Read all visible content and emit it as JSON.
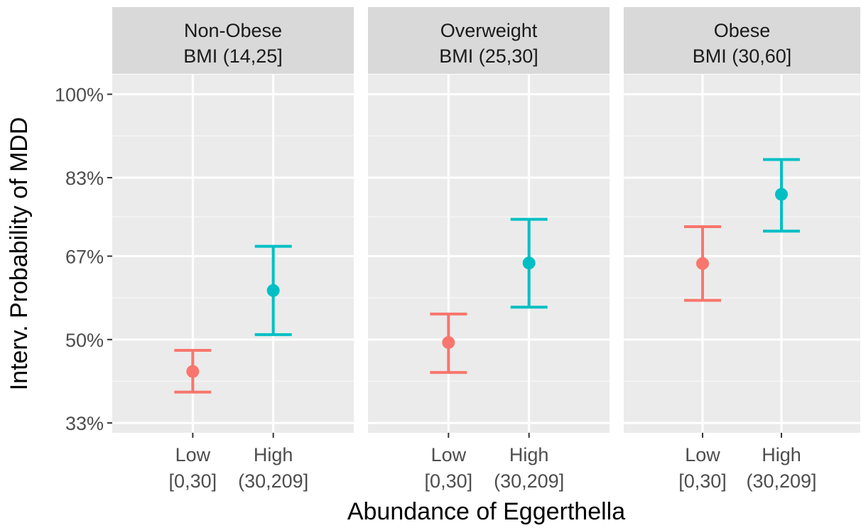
{
  "chart_data": {
    "type": "scatter",
    "subtype": "point-with-errorbars-faceted",
    "xlabel": "Abundance of Eggerthella",
    "ylabel": "Interv. Probability of  MDD",
    "ylim": [
      31,
      104
    ],
    "yticks": [
      33,
      50,
      67,
      83,
      100
    ],
    "ytick_labels": [
      "33%",
      "50%",
      "67%",
      "83%",
      "100%"
    ],
    "grid": true,
    "legend": "none",
    "categories": [
      {
        "line1": "Low",
        "line2": "[0,30]",
        "color": "#F8766D"
      },
      {
        "line1": "High",
        "line2": "(30,209]",
        "color": "#00BFC4"
      }
    ],
    "facets": [
      {
        "title1": "Non-Obese",
        "title2": "BMI (14,25]",
        "points": [
          {
            "value": 43.5,
            "lower": 39.3,
            "upper": 47.8
          },
          {
            "value": 60.0,
            "lower": 51.0,
            "upper": 69.0
          }
        ]
      },
      {
        "title1": "Overweight",
        "title2": "BMI (25,30]",
        "points": [
          {
            "value": 49.4,
            "lower": 43.3,
            "upper": 55.2
          },
          {
            "value": 65.6,
            "lower": 56.6,
            "upper": 74.5
          }
        ]
      },
      {
        "title1": "Obese",
        "title2": "BMI (30,60]",
        "points": [
          {
            "value": 65.5,
            "lower": 58.0,
            "upper": 73.0
          },
          {
            "value": 79.6,
            "lower": 72.1,
            "upper": 86.7
          }
        ]
      }
    ]
  }
}
